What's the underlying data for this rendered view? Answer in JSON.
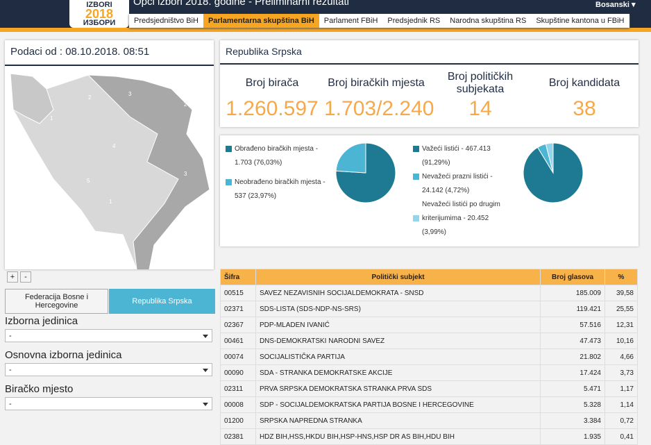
{
  "header": {
    "logo_top": "IZBORI",
    "logo_year": "2018",
    "logo_bottom": "ИЗБОРИ",
    "title": "Opći izbori 2018. godine - Preliminarni rezultati",
    "language": "Bosanski"
  },
  "tabs": [
    "Predsjedništvo BiH",
    "Parlamentarna skupština BiH",
    "Parlament FBiH",
    "Predsjednik RS",
    "Narodna skupština RS",
    "Skupštine kantona u FBiH"
  ],
  "left_panel": {
    "timestamp": "Podaci od : 08.10.2018. 08:51",
    "zoom_in": "+",
    "zoom_out": "-",
    "map_labels": [
      "3",
      "2",
      "2",
      "1",
      "4",
      "3",
      "5",
      "1"
    ],
    "entity_buttons": [
      "Federacija Bosne i Hercegovine",
      "Republika Srpska"
    ],
    "filters": [
      {
        "label": "Izborna jedinica",
        "value": "-"
      },
      {
        "label": "Osnovna izborna jedinica",
        "value": "-"
      },
      {
        "label": "Biračko mjesto",
        "value": "-"
      }
    ]
  },
  "summary": {
    "title": "Republika Srpska",
    "stats": [
      {
        "label": "Broj birača",
        "value": "1.260.597"
      },
      {
        "label": "Broj biračkih mjesta",
        "value": "1.703/2.240"
      },
      {
        "label": "Broj političkih subjekata",
        "value": "14"
      },
      {
        "label": "Broj kandidata",
        "value": "38"
      }
    ]
  },
  "pies": [
    {
      "slices": [
        {
          "lines": [
            "Obrađeno biračkih mjesta -",
            "1.703 (76,03%)"
          ],
          "percent": 76.03,
          "color": "#1d7a92"
        },
        {
          "lines": [
            "Neobrađeno biračkih mjesta -",
            "537 (23,97%)"
          ],
          "percent": 23.97,
          "color": "#4bb5d3"
        }
      ]
    },
    {
      "slices": [
        {
          "lines": [
            "Važeći listići - 467.413",
            "(91,29%)"
          ],
          "percent": 91.29,
          "color": "#1d7a92"
        },
        {
          "lines": [
            "Nevažeći prazni listići -",
            "24.142 (4,72%)"
          ],
          "percent": 4.72,
          "color": "#4bb5d3"
        },
        {
          "lines": [
            "Nevažeći listići po drugim",
            "kriterijumima - 20.452",
            "(3,99%)"
          ],
          "percent": 3.99,
          "color": "#93d5ea"
        }
      ]
    }
  ],
  "table": {
    "headers": [
      "Šifra",
      "Politički subjekt",
      "Broj glasova",
      "%"
    ],
    "rows": [
      [
        "00515",
        "SAVEZ NEZAVISNIH SOCIJALDEMOKRATA - SNSD",
        "185.009",
        "39,58"
      ],
      [
        "02371",
        "SDS-LISTA (SDS-NDP-NS-SRS)",
        "119.421",
        "25,55"
      ],
      [
        "02367",
        "PDP-MLADEN IVANIĆ",
        "57.516",
        "12,31"
      ],
      [
        "00461",
        "DNS-DEMOKRATSKI NARODNI SAVEZ",
        "47.473",
        "10,16"
      ],
      [
        "00074",
        "SOCIJALISTIČKA PARTIJA",
        "21.802",
        "4,66"
      ],
      [
        "00090",
        "SDA - STRANKA DEMOKRATSKE AKCIJE",
        "17.424",
        "3,73"
      ],
      [
        "02311",
        "PRVA SRPSKA DEMOKRATSKA STRANKA PRVA SDS",
        "5.471",
        "1,17"
      ],
      [
        "00008",
        "SDP - SOCIJALDEMOKRATSKA PARTIJA BOSNE I HERCEGOVINE",
        "5.328",
        "1,14"
      ],
      [
        "01200",
        "SRPSKA NAPREDNA STRANKA",
        "3.384",
        "0,72"
      ],
      [
        "02381",
        "HDZ BIH,HSS,HKDU BIH,HSP-HNS,HSP DR AS BIH,HDU BIH",
        "1.935",
        "0,41"
      ]
    ]
  }
}
